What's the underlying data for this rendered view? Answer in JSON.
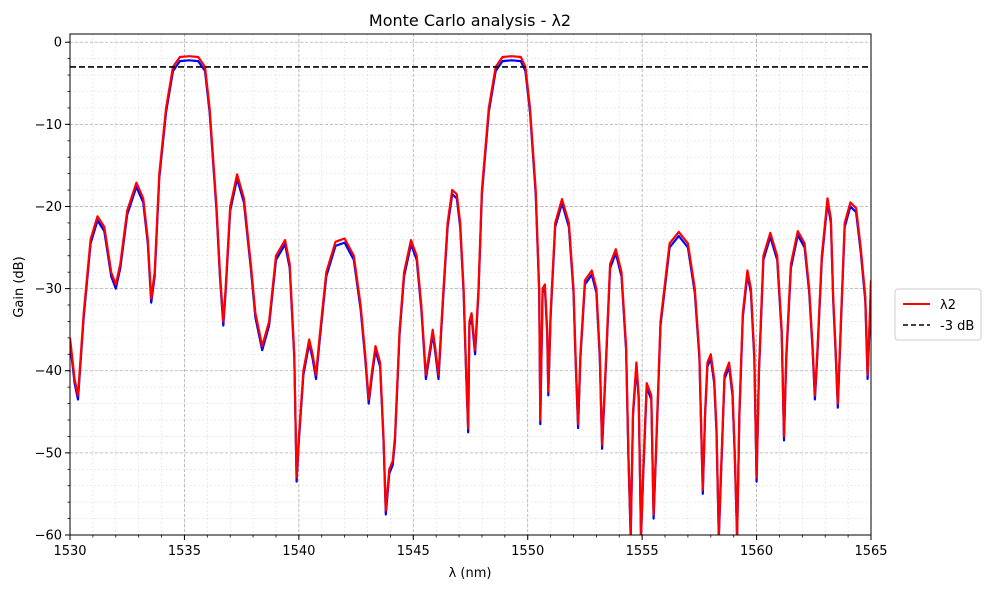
{
  "chart_data": {
    "type": "line",
    "title": "Monte Carlo analysis - λ2",
    "xlabel": "λ (nm)",
    "ylabel": "Gain (dB)",
    "xlim": [
      1530,
      1565
    ],
    "ylim": [
      -60,
      1
    ],
    "xticks": [
      1530,
      1535,
      1540,
      1545,
      1550,
      1555,
      1560,
      1565
    ],
    "yticks": [
      0,
      -10,
      -20,
      -30,
      -40,
      -50,
      -60
    ],
    "ytick_labels": [
      "0",
      "−10",
      "−20",
      "−30",
      "−40",
      "−50",
      "−60"
    ],
    "grid": true,
    "minor_grid": true,
    "legend_position": "right-outside",
    "series": [
      {
        "name": "λ2",
        "color": "#ff0000",
        "points": [
          [
            1530.0,
            -36
          ],
          [
            1530.2,
            -41
          ],
          [
            1530.35,
            -43
          ],
          [
            1530.6,
            -33
          ],
          [
            1530.9,
            -24
          ],
          [
            1531.2,
            -21.2
          ],
          [
            1531.5,
            -22.5
          ],
          [
            1531.8,
            -28
          ],
          [
            1532.0,
            -29.5
          ],
          [
            1532.2,
            -27
          ],
          [
            1532.5,
            -20.5
          ],
          [
            1532.9,
            -17.1
          ],
          [
            1533.2,
            -19
          ],
          [
            1533.4,
            -24
          ],
          [
            1533.55,
            -31.2
          ],
          [
            1533.7,
            -28
          ],
          [
            1533.9,
            -16
          ],
          [
            1534.2,
            -8
          ],
          [
            1534.5,
            -3
          ],
          [
            1534.8,
            -1.8
          ],
          [
            1535.2,
            -1.7
          ],
          [
            1535.6,
            -1.8
          ],
          [
            1535.9,
            -3
          ],
          [
            1536.1,
            -8
          ],
          [
            1536.4,
            -20
          ],
          [
            1536.55,
            -28
          ],
          [
            1536.7,
            -34
          ],
          [
            1536.8,
            -30
          ],
          [
            1537.0,
            -20
          ],
          [
            1537.3,
            -16.1
          ],
          [
            1537.6,
            -19
          ],
          [
            1537.9,
            -27
          ],
          [
            1538.1,
            -33
          ],
          [
            1538.4,
            -37
          ],
          [
            1538.7,
            -34
          ],
          [
            1539.0,
            -26
          ],
          [
            1539.4,
            -24.1
          ],
          [
            1539.6,
            -27
          ],
          [
            1539.8,
            -38
          ],
          [
            1539.9,
            -53
          ],
          [
            1540.0,
            -48
          ],
          [
            1540.2,
            -40
          ],
          [
            1540.45,
            -36.2
          ],
          [
            1540.6,
            -38
          ],
          [
            1540.75,
            -40.5
          ],
          [
            1540.9,
            -36
          ],
          [
            1541.2,
            -28
          ],
          [
            1541.6,
            -24.3
          ],
          [
            1542.0,
            -23.9
          ],
          [
            1542.4,
            -26
          ],
          [
            1542.7,
            -32
          ],
          [
            1542.9,
            -38
          ],
          [
            1543.05,
            -43.5
          ],
          [
            1543.2,
            -40
          ],
          [
            1543.35,
            -37
          ],
          [
            1543.55,
            -39
          ],
          [
            1543.7,
            -48
          ],
          [
            1543.8,
            -57
          ],
          [
            1543.95,
            -52
          ],
          [
            1544.1,
            -51
          ],
          [
            1544.2,
            -48
          ],
          [
            1544.4,
            -35
          ],
          [
            1544.6,
            -28
          ],
          [
            1544.9,
            -24.1
          ],
          [
            1545.15,
            -26
          ],
          [
            1545.35,
            -32
          ],
          [
            1545.55,
            -40.5
          ],
          [
            1545.75,
            -37
          ],
          [
            1545.85,
            -35
          ],
          [
            1545.95,
            -37
          ],
          [
            1546.1,
            -40.5
          ],
          [
            1546.3,
            -31
          ],
          [
            1546.5,
            -22
          ],
          [
            1546.7,
            -18
          ],
          [
            1546.9,
            -18.5
          ],
          [
            1547.05,
            -22
          ],
          [
            1547.2,
            -30
          ],
          [
            1547.3,
            -39
          ],
          [
            1547.4,
            -47
          ],
          [
            1547.45,
            -34
          ],
          [
            1547.55,
            -33
          ],
          [
            1547.7,
            -37.5
          ],
          [
            1547.85,
            -30
          ],
          [
            1548.0,
            -18
          ],
          [
            1548.3,
            -8
          ],
          [
            1548.6,
            -3
          ],
          [
            1548.9,
            -1.8
          ],
          [
            1549.3,
            -1.7
          ],
          [
            1549.7,
            -1.8
          ],
          [
            1549.9,
            -3
          ],
          [
            1550.1,
            -8
          ],
          [
            1550.35,
            -18
          ],
          [
            1550.5,
            -30
          ],
          [
            1550.55,
            -46
          ],
          [
            1550.65,
            -30
          ],
          [
            1550.75,
            -29.5
          ],
          [
            1550.85,
            -35
          ],
          [
            1550.9,
            -42.5
          ],
          [
            1551.0,
            -33
          ],
          [
            1551.2,
            -22
          ],
          [
            1551.5,
            -19.1
          ],
          [
            1551.8,
            -22
          ],
          [
            1552.0,
            -30
          ],
          [
            1552.1,
            -39
          ],
          [
            1552.2,
            -46.5
          ],
          [
            1552.3,
            -38
          ],
          [
            1552.5,
            -29
          ],
          [
            1552.8,
            -27.8
          ],
          [
            1553.0,
            -30
          ],
          [
            1553.15,
            -38
          ],
          [
            1553.25,
            -49
          ],
          [
            1553.4,
            -40
          ],
          [
            1553.6,
            -27
          ],
          [
            1553.85,
            -25.2
          ],
          [
            1554.1,
            -28
          ],
          [
            1554.3,
            -37
          ],
          [
            1554.4,
            -50
          ],
          [
            1554.5,
            -60
          ],
          [
            1554.6,
            -45
          ],
          [
            1554.75,
            -39
          ],
          [
            1554.85,
            -43
          ],
          [
            1554.95,
            -60
          ],
          [
            1555.05,
            -52
          ],
          [
            1555.2,
            -41.5
          ],
          [
            1555.4,
            -43
          ],
          [
            1555.5,
            -57.5
          ],
          [
            1555.6,
            -50
          ],
          [
            1555.8,
            -34
          ],
          [
            1556.2,
            -24.5
          ],
          [
            1556.6,
            -23.1
          ],
          [
            1557.0,
            -24.5
          ],
          [
            1557.3,
            -30
          ],
          [
            1557.5,
            -38
          ],
          [
            1557.65,
            -54.5
          ],
          [
            1557.75,
            -45
          ],
          [
            1557.85,
            -39
          ],
          [
            1558.0,
            -38
          ],
          [
            1558.15,
            -41
          ],
          [
            1558.25,
            -47
          ],
          [
            1558.35,
            -60
          ],
          [
            1558.45,
            -52
          ],
          [
            1558.6,
            -40.5
          ],
          [
            1558.8,
            -39
          ],
          [
            1558.95,
            -42.5
          ],
          [
            1559.05,
            -50
          ],
          [
            1559.15,
            -60
          ],
          [
            1559.25,
            -45
          ],
          [
            1559.4,
            -33
          ],
          [
            1559.6,
            -27.8
          ],
          [
            1559.75,
            -30
          ],
          [
            1559.9,
            -38
          ],
          [
            1560.0,
            -53
          ],
          [
            1560.1,
            -40
          ],
          [
            1560.3,
            -26
          ],
          [
            1560.6,
            -23.2
          ],
          [
            1560.9,
            -26
          ],
          [
            1561.1,
            -35
          ],
          [
            1561.2,
            -48
          ],
          [
            1561.3,
            -38
          ],
          [
            1561.5,
            -27
          ],
          [
            1561.8,
            -23
          ],
          [
            1562.1,
            -24.5
          ],
          [
            1562.3,
            -30
          ],
          [
            1562.45,
            -37
          ],
          [
            1562.55,
            -43
          ],
          [
            1562.65,
            -38
          ],
          [
            1562.85,
            -26
          ],
          [
            1563.1,
            -19
          ],
          [
            1563.25,
            -21.5
          ],
          [
            1563.35,
            -31
          ],
          [
            1563.45,
            -37
          ],
          [
            1563.55,
            -44
          ],
          [
            1563.7,
            -33
          ],
          [
            1563.85,
            -22
          ],
          [
            1564.1,
            -19.5
          ],
          [
            1564.35,
            -20.2
          ],
          [
            1564.55,
            -25
          ],
          [
            1564.75,
            -31
          ],
          [
            1564.85,
            -40.5
          ],
          [
            1564.95,
            -33
          ],
          [
            1565.0,
            -29
          ]
        ]
      },
      {
        "name": "-3 dB",
        "color": "#000000",
        "dashed": true,
        "points": [
          [
            1530,
            -3
          ],
          [
            1565,
            -3
          ]
        ]
      }
    ]
  }
}
